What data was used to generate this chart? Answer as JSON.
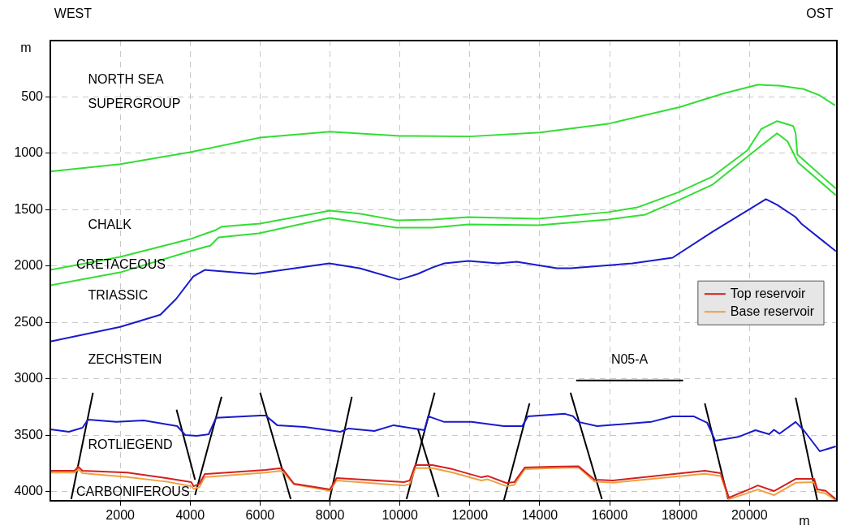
{
  "chart_data": {
    "type": "line",
    "xlabel": "m",
    "ylabel": "m",
    "xlim": [
      0,
      22500
    ],
    "ylim": [
      4080,
      0
    ],
    "xticks": [
      2000,
      4000,
      6000,
      8000,
      10000,
      12000,
      14000,
      16000,
      18000,
      20000
    ],
    "yticks": [
      500,
      1000,
      1500,
      2000,
      2500,
      3000,
      3500,
      4000
    ],
    "grid": true,
    "legend": "right",
    "marker": "none",
    "line_style": "solid",
    "annotations": [
      "WEST",
      "OST",
      "NORTH SEA",
      "SUPERGROUP",
      "CHALK",
      "CRETACEOUS",
      "TRIASSIC",
      "ZECHSTEIN",
      "ROTLIEGEND",
      "CARBONIFEROUS",
      "N05-A"
    ],
    "series": [
      {
        "color": "#33dd33",
        "x": [
          0,
          2000,
          4000,
          6000,
          8000,
          10000,
          12000,
          14000,
          16000,
          18000,
          19250,
          20250,
          20500,
          20850,
          21550,
          22000,
          22450
        ],
        "values": [
          1160,
          1095,
          990,
          860,
          808,
          845,
          850,
          815,
          735,
          590,
          470,
          390,
          395,
          400,
          430,
          485,
          575
        ]
      },
      {
        "color": "#33dd33",
        "x": [
          0,
          2000,
          4000,
          4730,
          4900,
          6000,
          8000,
          8850,
          9900,
          10930,
          11960,
          13960,
          15960,
          16800,
          17940,
          18950,
          19940,
          20330,
          20790,
          21250,
          21320,
          21370,
          21550,
          22470
        ],
        "values": [
          2033,
          1918,
          1760,
          1680,
          1650,
          1622,
          1507,
          1535,
          1593,
          1586,
          1565,
          1580,
          1521,
          1478,
          1348,
          1204,
          973,
          786,
          714,
          757,
          822,
          1010,
          1060,
          1312
        ]
      },
      {
        "color": "#33dd33",
        "x": [
          0,
          2000,
          4000,
          4580,
          4810,
          5960,
          7980,
          9890,
          10930,
          11960,
          13960,
          15960,
          17020,
          17940,
          18950,
          20400,
          20790,
          21090,
          21390,
          22470
        ],
        "values": [
          2170,
          2055,
          1867,
          1817,
          1745,
          1709,
          1572,
          1658,
          1658,
          1630,
          1637,
          1586,
          1543,
          1420,
          1276,
          916,
          822,
          894,
          1082,
          1370
        ]
      },
      {
        "color": "#1a1acc",
        "x": [
          0,
          2000,
          3150,
          3600,
          4090,
          4420,
          5840,
          7980,
          8850,
          9980,
          10510,
          10930,
          11270,
          11960,
          12810,
          13340,
          14490,
          14880,
          16650,
          17800,
          18950,
          20470,
          20790,
          21320,
          21480,
          22470
        ],
        "values": [
          2668,
          2538,
          2430,
          2290,
          2091,
          2033,
          2069,
          1975,
          2019,
          2120,
          2069,
          2012,
          1975,
          1954,
          1975,
          1961,
          2019,
          2019,
          1975,
          1925,
          1694,
          1406,
          1456,
          1565,
          1622,
          1867
        ]
      },
      {
        "color": "#1a1acc",
        "x": [
          0,
          530,
          920,
          1080,
          1890,
          2670,
          3630,
          3860,
          4190,
          4530,
          4740,
          6000,
          6160,
          6490,
          7270,
          8300,
          8530,
          9270,
          9820,
          10700,
          10810,
          11270,
          12050,
          12970,
          13500,
          13660,
          14720,
          14950,
          15110,
          15640,
          17180,
          17800,
          18400,
          18790,
          19020,
          19710,
          20170,
          20560,
          20700,
          20860,
          21320,
          21550,
          22010,
          22470
        ],
        "values": [
          3446,
          3468,
          3432,
          3360,
          3381,
          3367,
          3418,
          3497,
          3504,
          3490,
          3345,
          3324,
          3324,
          3410,
          3425,
          3468,
          3439,
          3461,
          3410,
          3454,
          3331,
          3381,
          3381,
          3418,
          3418,
          3331,
          3309,
          3330,
          3381,
          3418,
          3381,
          3331,
          3331,
          3389,
          3547,
          3511,
          3454,
          3490,
          3450,
          3485,
          3381,
          3454,
          3641,
          3598
        ]
      },
      {
        "name": "Top reservoir",
        "color": "#d42020",
        "x": [
          0,
          690,
          800,
          920,
          2200,
          3310,
          4030,
          4100,
          4260,
          4420,
          6160,
          6560,
          6650,
          6970,
          8000,
          8190,
          10120,
          10280,
          10440,
          10930,
          11510,
          12330,
          12510,
          13040,
          13270,
          13570,
          14350,
          15110,
          15570,
          16100,
          18720,
          19180,
          19410,
          19870,
          20240,
          20700,
          21320,
          21850,
          21940,
          22170,
          22470
        ],
        "values": [
          3814,
          3814,
          3778,
          3814,
          3830,
          3879,
          3915,
          3951,
          3930,
          3843,
          3807,
          3793,
          3800,
          3929,
          3980,
          3879,
          3915,
          3900,
          3764,
          3764,
          3800,
          3872,
          3860,
          3922,
          3915,
          3785,
          3778,
          3775,
          3893,
          3900,
          3814,
          3836,
          4052,
          3994,
          3944,
          3994,
          3886,
          3886,
          3980,
          3990,
          4066
        ]
      },
      {
        "name": "Base reservoir",
        "color": "#f0a040",
        "x": [
          0,
          690,
          800,
          920,
          2200,
          3310,
          4030,
          4100,
          4260,
          4420,
          6160,
          6560,
          6650,
          6970,
          8000,
          8190,
          10120,
          10280,
          10440,
          10930,
          11510,
          12330,
          12510,
          13040,
          13270,
          13570,
          14350,
          15110,
          15570,
          16100,
          18720,
          19180,
          19410,
          19870,
          20240,
          20700,
          21320,
          21850,
          21940,
          22170,
          22470
        ],
        "values": [
          3830,
          3830,
          3800,
          3836,
          3870,
          3910,
          3950,
          3975,
          3960,
          3870,
          3830,
          3815,
          3822,
          3935,
          3990,
          3900,
          3945,
          3930,
          3790,
          3790,
          3830,
          3900,
          3890,
          3950,
          3940,
          3800,
          3790,
          3785,
          3910,
          3920,
          3840,
          3860,
          4066,
          4020,
          3980,
          4030,
          3920,
          3915,
          4000,
          4015,
          4075
        ]
      },
      {
        "color": "#000000",
        "x": [
          1219,
          598
        ],
        "values": [
          3122,
          4066
        ]
      },
      {
        "color": "#000000",
        "x": [
          3611,
          4140
        ],
        "values": [
          3273,
          3893
        ]
      },
      {
        "color": "#000000",
        "x": [
          4899,
          4140
        ],
        "values": [
          3158,
          4030
        ]
      },
      {
        "color": "#000000",
        "x": [
          6003,
          6877
        ],
        "values": [
          3122,
          4066
        ]
      },
      {
        "color": "#000000",
        "x": [
          8625,
          7981
        ],
        "values": [
          3158,
          4080
        ]
      },
      {
        "color": "#000000",
        "x": [
          10994,
          10189
        ],
        "values": [
          3122,
          4066
        ]
      },
      {
        "color": "#000000",
        "x": [
          10511,
          11109
        ],
        "values": [
          3439,
          4045
        ]
      },
      {
        "color": "#000000",
        "x": [
          13708,
          12972
        ],
        "values": [
          3216,
          4080
        ]
      },
      {
        "color": "#000000",
        "x": [
          14881,
          15778
        ],
        "values": [
          3122,
          4066
        ]
      },
      {
        "color": "#000000",
        "x": [
          18722,
          19389
        ],
        "values": [
          3216,
          4066
        ]
      },
      {
        "color": "#000000",
        "x": [
          21321,
          21942
        ],
        "values": [
          3165,
          4080
        ]
      },
      {
        "color": "#000000",
        "x": [
          15042,
          18101
        ],
        "values": [
          3014,
          3014
        ]
      }
    ]
  }
}
